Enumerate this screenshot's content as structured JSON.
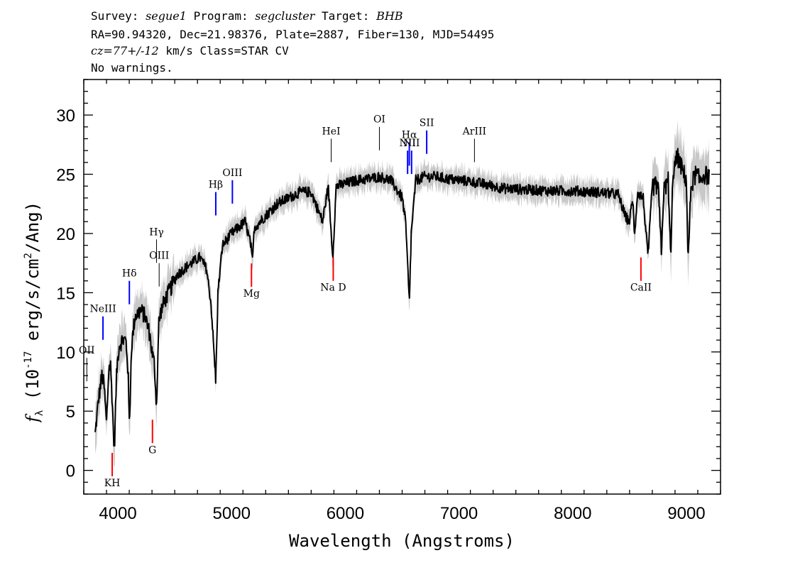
{
  "header": {
    "survey_label": "Survey:",
    "survey": "segue1",
    "program_label": "Program:",
    "program": "segcluster",
    "target_label": "Target:",
    "target": "BHB",
    "line2": "RA=90.94320, Dec=21.98376, Plate=2887, Fiber=130, MJD=54495",
    "cz": "cz=77+/-12",
    "cz_rest": " km/s Class=STAR CV",
    "line4": "No warnings."
  },
  "chart_data": {
    "type": "line",
    "xlabel": "Wavelength (Angstroms)",
    "ylabel": "f_λ (10^-17 erg/s/cm^2/Ang)",
    "xlim": [
      3700,
      9300
    ],
    "ylim": [
      -2,
      33
    ],
    "x_ticks": [
      4000,
      5000,
      6000,
      7000,
      8000,
      9000
    ],
    "y_ticks": [
      0,
      5,
      10,
      15,
      20,
      25,
      30
    ],
    "series": [
      {
        "color": "#000000",
        "x": [
          3800,
          3830,
          3860,
          3880,
          3900,
          3920,
          3935,
          3950,
          3968,
          3990,
          4010,
          4040,
          4070,
          4090,
          4101,
          4120,
          4150,
          4200,
          4240,
          4280,
          4300,
          4320,
          4340,
          4360,
          4380,
          4420,
          4470,
          4520,
          4580,
          4650,
          4720,
          4780,
          4820,
          4845,
          4861,
          4880,
          4920,
          4960,
          5000,
          5060,
          5120,
          5170,
          5183,
          5200,
          5300,
          5400,
          5500,
          5600,
          5700,
          5800,
          5850,
          5890,
          5920,
          6000,
          6100,
          6200,
          6300,
          6400,
          6500,
          6530,
          6550,
          6563,
          6580,
          6620,
          6700,
          6800,
          6900,
          7000,
          7100,
          7200,
          7300,
          7400,
          7600,
          7800,
          8000,
          8200,
          8400,
          8460,
          8498,
          8530,
          8542,
          8570,
          8620,
          8662,
          8700,
          8750,
          8780,
          8800,
          8840,
          8863,
          8880,
          8920,
          8960,
          9000,
          9015,
          9040,
          9080,
          9120,
          9150,
          9200
        ],
        "y": [
          3.0,
          6.0,
          8.0,
          7.0,
          4.0,
          8.5,
          9.0,
          6.0,
          1.5,
          8.5,
          10.5,
          11.0,
          11.0,
          8.5,
          3.5,
          10.5,
          13.0,
          13.5,
          13.0,
          11.5,
          10.0,
          9.0,
          5.5,
          12.5,
          13.5,
          14.5,
          15.5,
          16.5,
          17.0,
          17.5,
          18.0,
          17.0,
          14.0,
          10.0,
          7.5,
          15.0,
          19.0,
          19.5,
          20.0,
          20.5,
          21.0,
          19.0,
          17.5,
          20.5,
          21.5,
          22.5,
          23.0,
          23.5,
          23.5,
          21.0,
          24.0,
          18.0,
          24.0,
          24.2,
          24.5,
          24.6,
          24.8,
          24.5,
          23.0,
          21.0,
          17.0,
          14.0,
          20.0,
          24.5,
          24.8,
          24.8,
          24.6,
          24.5,
          24.4,
          24.2,
          24.0,
          23.8,
          23.7,
          23.6,
          23.6,
          23.5,
          23.3,
          21.5,
          21.0,
          23.0,
          19.5,
          23.5,
          23.0,
          18.0,
          24.0,
          24.0,
          18.5,
          23.5,
          24.5,
          17.5,
          25.0,
          26.5,
          25.5,
          24.5,
          17.5,
          24.0,
          25.0,
          24.5,
          25.0,
          24.8
        ]
      }
    ],
    "line_labels": [
      {
        "label": "OII",
        "wave": 3727,
        "y": 9.5,
        "color": "#000000"
      },
      {
        "label": "NeIII",
        "wave": 3869,
        "y": 13.0,
        "color": "#0000ff"
      },
      {
        "label": "Hδ",
        "wave": 4101,
        "y": 16.0,
        "color": "#0000ff"
      },
      {
        "label": "Hγ",
        "wave": 4340,
        "y": 19.5,
        "color": "#000000"
      },
      {
        "label": "OIII",
        "wave": 4363,
        "y": 17.5,
        "color": "#000000"
      },
      {
        "label": "Hβ",
        "wave": 4861,
        "y": 23.5,
        "color": "#0000ff"
      },
      {
        "label": "OIII",
        "wave": 5007,
        "y": 24.5,
        "color": "#0000ff"
      },
      {
        "label": "HeI",
        "wave": 5876,
        "y": 28.0,
        "color": "#000000"
      },
      {
        "label": "OI",
        "wave": 6300,
        "y": 29.0,
        "color": "#000000"
      },
      {
        "label": "NII",
        "wave": 6548,
        "y": 27.0,
        "color": "#0000ff"
      },
      {
        "label": "Hα",
        "wave": 6563,
        "y": 27.7,
        "color": "#0000ff"
      },
      {
        "label": "NII",
        "wave": 6583,
        "y": 27.0,
        "color": "#0000ff"
      },
      {
        "label": "SII",
        "wave": 6716,
        "y": 28.7,
        "color": "#0000ff"
      },
      {
        "label": "ArIII",
        "wave": 7136,
        "y": 28.0,
        "color": "#000000"
      },
      {
        "label": "KH",
        "wave": 3950,
        "y": -0.5,
        "color": "#ff0000"
      },
      {
        "label": "G",
        "wave": 4304,
        "y": 2.3,
        "color": "#ff0000"
      },
      {
        "label": "Mg",
        "wave": 5175,
        "y": 15.5,
        "color": "#ff0000"
      },
      {
        "label": "Na D",
        "wave": 5894,
        "y": 16.0,
        "color": "#ff0000"
      },
      {
        "label": "CaII",
        "wave": 8600,
        "y": 16.0,
        "color": "#ff0000"
      }
    ]
  }
}
